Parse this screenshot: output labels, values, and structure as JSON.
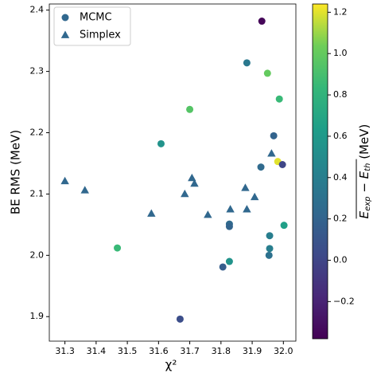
{
  "chart_data": {
    "type": "scatter",
    "x_label": "χ²",
    "y_label": "BE RMS (MeV)",
    "xlim": [
      31.25,
      32.04
    ],
    "ylim": [
      1.86,
      2.41
    ],
    "xticks": [
      31.3,
      31.4,
      31.5,
      31.6,
      31.7,
      31.8,
      31.9,
      {
        "value": 32,
        "label": "32.0"
      }
    ],
    "yticks": [
      1.9,
      {
        "value": 2,
        "label": "2.0"
      },
      2.1,
      2.2,
      2.3,
      2.4
    ],
    "legend": "upper left",
    "series": [
      {
        "name": "MCMC",
        "marker": "circle",
        "color": "#31688e",
        "x": [
          31.931,
          31.883,
          31.949,
          31.987,
          31.7,
          31.969,
          31.608,
          31.982,
          31.997,
          31.928,
          31.827,
          31.827,
          31.956,
          32.002,
          31.468,
          31.956,
          31.954,
          31.827,
          31.806,
          31.669
        ],
        "values": [
          2.382,
          2.314,
          2.297,
          2.255,
          2.238,
          2.195,
          2.182,
          2.153,
          2.148,
          2.144,
          2.051,
          2.047,
          2.032,
          2.049,
          2.012,
          2.011,
          2.0,
          1.99,
          1.981,
          1.896
        ],
        "c": [
          -0.35,
          0.35,
          1.0,
          0.85,
          0.95,
          0.2,
          0.55,
          1.2,
          0.0,
          0.25,
          0.25,
          0.2,
          0.4,
          0.65,
          0.85,
          0.4,
          0.3,
          0.55,
          0.15,
          0.05
        ]
      },
      {
        "name": "Simplex",
        "marker": "triangle",
        "color": "#31688e",
        "x": [
          31.3,
          31.364,
          31.577,
          31.684,
          31.707,
          31.715,
          31.758,
          31.83,
          31.878,
          31.883,
          31.908,
          31.962
        ],
        "values": [
          2.121,
          2.106,
          2.068,
          2.1,
          2.126,
          2.117,
          2.066,
          2.075,
          2.11,
          2.075,
          2.095,
          2.166
        ]
      }
    ],
    "colorbar": {
      "colormap": "viridis",
      "clim": [
        -0.38,
        1.24
      ],
      "ticks": [
        {
          "value": -0.2,
          "label": "−0.2"
        },
        {
          "value": 0,
          "label": "0.0"
        },
        0.2,
        0.4,
        0.6,
        0.8,
        {
          "value": 1,
          "label": "1.0"
        },
        1.2
      ],
      "label_parts": [
        "E",
        "exp",
        " − E",
        "th",
        " (MeV)"
      ]
    }
  }
}
